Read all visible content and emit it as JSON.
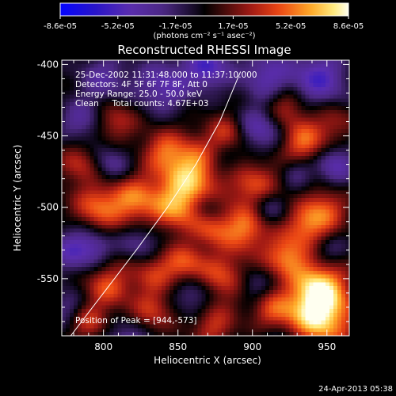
{
  "chart_data": {
    "type": "heatmap",
    "title": "Reconstructed RHESSI Image",
    "xlabel": "Heliocentric X (arcsec)",
    "ylabel": "Heliocentric Y (arcsec)",
    "xlim": [
      772,
      965
    ],
    "ylim": [
      -590,
      -397
    ],
    "x_ticks": [
      800,
      850,
      900,
      950
    ],
    "y_ticks": [
      -400,
      -450,
      -500,
      -550
    ],
    "colorbar": {
      "ticks": [
        "-8.6e-05",
        "-5.2e-05",
        "-1.7e-05",
        "1.7e-05",
        "5.2e-05",
        "8.6e-05"
      ],
      "units": "(photons cm⁻² s⁻¹ asec⁻²)",
      "range": [
        -8.6e-05,
        8.6e-05
      ]
    },
    "annotations": [
      "25-Dec-2002 11:31:48.000 to 11:37:10.000",
      "Detectors: 4F 5F 6F 7F 8F, Att 0",
      "Energy Range: 25.0 - 50.0 keV",
      "Clean     Total counts: 4.67E+03"
    ],
    "peak_label": "Position of Peak = [944,-573]",
    "peak": [
      944,
      -573
    ],
    "limb_curve": [
      [
        778,
        -590
      ],
      [
        800,
        -560
      ],
      [
        822,
        -530
      ],
      [
        843,
        -500
      ],
      [
        862,
        -470
      ],
      [
        878,
        -440
      ],
      [
        892,
        -405
      ]
    ],
    "sources": [
      [
        944,
        -575,
        5,
        16
      ],
      [
        945,
        -553,
        3,
        12
      ],
      [
        938,
        -513,
        3,
        11
      ],
      [
        923,
        -535,
        3,
        10
      ],
      [
        895,
        -515,
        3,
        12
      ],
      [
        902,
        -485,
        2.5,
        12
      ],
      [
        860,
        -475,
        4,
        15
      ],
      [
        850,
        -500,
        3,
        12
      ],
      [
        820,
        -495,
        3,
        13
      ],
      [
        795,
        -500,
        2.5,
        11
      ],
      [
        785,
        -470,
        2,
        10
      ],
      [
        880,
        -550,
        2.5,
        12
      ],
      [
        855,
        -540,
        2.5,
        10
      ],
      [
        833,
        -545,
        2,
        11
      ],
      [
        803,
        -555,
        2.5,
        11
      ],
      [
        833,
        -572,
        2,
        10
      ],
      [
        874,
        -583,
        2,
        10
      ],
      [
        913,
        -572,
        2,
        10
      ],
      [
        935,
        -455,
        3,
        11
      ],
      [
        922,
        -430,
        2,
        10
      ],
      [
        883,
        -448,
        2,
        9
      ],
      [
        840,
        -460,
        2,
        10
      ],
      [
        808,
        -440,
        2,
        10
      ],
      [
        790,
        -580,
        2,
        9
      ],
      [
        950,
        -500,
        2,
        10
      ],
      [
        873,
        -515,
        2,
        9
      ],
      [
        955,
        -440,
        1.5,
        9
      ],
      [
        840,
        -415,
        -2.5,
        13
      ],
      [
        870,
        -402,
        -3,
        11
      ],
      [
        910,
        -408,
        -2.5,
        12
      ],
      [
        945,
        -410,
        -3,
        13
      ],
      [
        905,
        -445,
        -2.5,
        11
      ],
      [
        800,
        -410,
        -2,
        12
      ],
      [
        785,
        -440,
        -2,
        10
      ],
      [
        805,
        -470,
        -2,
        10
      ],
      [
        955,
        -470,
        -2.5,
        10
      ],
      [
        910,
        -500,
        -2,
        9
      ],
      [
        880,
        -470,
        -1.5,
        9
      ],
      [
        825,
        -525,
        -2,
        10
      ],
      [
        780,
        -530,
        -2.5,
        11
      ],
      [
        795,
        -528,
        -1.5,
        8
      ],
      [
        860,
        -560,
        -2,
        10
      ],
      [
        920,
        -600,
        -2,
        12
      ],
      [
        900,
        -555,
        -1.5,
        9
      ],
      [
        815,
        -595,
        -2,
        10
      ],
      [
        950,
        -530,
        -1.5,
        9
      ],
      [
        775,
        -570,
        -1.5,
        9
      ],
      [
        870,
        -500,
        -1.5,
        8
      ],
      [
        930,
        -475,
        -1.5,
        8
      ]
    ]
  },
  "footer": {
    "timestamp": "24-Apr-2013 05:38"
  }
}
